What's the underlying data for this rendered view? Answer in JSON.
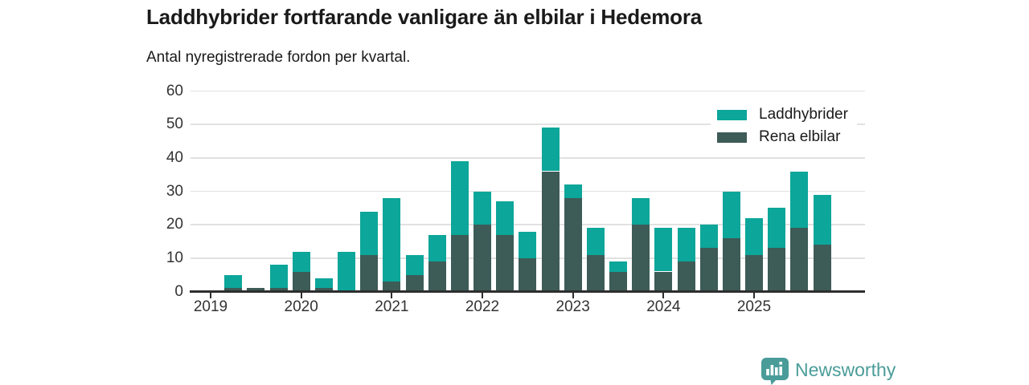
{
  "header": {
    "title": "Laddhybrider fortfarande vanligare än elbilar i Hedemora",
    "subtitle": "Antal nyregistrerade fordon per kvartal."
  },
  "legend": {
    "items": [
      {
        "label": "Laddhybrider",
        "color": "#0CA69A"
      },
      {
        "label": "Rena elbilar",
        "color": "#3D5B57"
      }
    ]
  },
  "footer": {
    "brand": "Newsworthy",
    "brand_color": "#4A9C99",
    "logo_icon": "bar-chart-badge-icon"
  },
  "chart_data": {
    "type": "bar",
    "stacked": true,
    "title": "Laddhybrider fortfarande vanligare än elbilar i Hedemora",
    "subtitle": "Antal nyregistrerade fordon per kvartal.",
    "categories": [
      "2019 Q1",
      "2019 Q2",
      "2019 Q3",
      "2019 Q4",
      "2020 Q1",
      "2020 Q2",
      "2020 Q3",
      "2020 Q4",
      "2021 Q1",
      "2021 Q2",
      "2021 Q3",
      "2021 Q4",
      "2022 Q1",
      "2022 Q2",
      "2022 Q3",
      "2022 Q4",
      "2023 Q1",
      "2023 Q2",
      "2023 Q3",
      "2023 Q4",
      "2024 Q1",
      "2024 Q2",
      "2024 Q3",
      "2024 Q4",
      "2025 Q1",
      "2025 Q2",
      "2025 Q3",
      "2025 Q4"
    ],
    "series": [
      {
        "name": "Rena elbilar",
        "color": "#3D5B57",
        "values": [
          0,
          1,
          1,
          1,
          6,
          1,
          0,
          11,
          3,
          5,
          9,
          17,
          20,
          17,
          10,
          36,
          28,
          11,
          6,
          20,
          6,
          9,
          13,
          16,
          11,
          13,
          19,
          14
        ]
      },
      {
        "name": "Laddhybrider",
        "color": "#0CA69A",
        "values": [
          0,
          4,
          0,
          7,
          6,
          3,
          12,
          13,
          25,
          6,
          8,
          22,
          10,
          10,
          8,
          13,
          4,
          8,
          3,
          8,
          13,
          10,
          7,
          14,
          11,
          12,
          17,
          15
        ]
      }
    ],
    "totals": [
      0,
      5,
      1,
      8,
      12,
      4,
      12,
      24,
      28,
      11,
      17,
      39,
      30,
      27,
      18,
      49,
      32,
      19,
      9,
      28,
      19,
      19,
      20,
      30,
      22,
      25,
      36,
      29
    ],
    "ylim": [
      0,
      60
    ],
    "yticks": [
      0,
      10,
      20,
      30,
      40,
      50,
      60
    ],
    "xtick_labels": [
      "2019",
      "2020",
      "2021",
      "2022",
      "2023",
      "2024",
      "2025"
    ],
    "xtick_quarter_indices": [
      0,
      4,
      8,
      12,
      16,
      20,
      24
    ],
    "legend_position": "top-right",
    "grid": true
  }
}
